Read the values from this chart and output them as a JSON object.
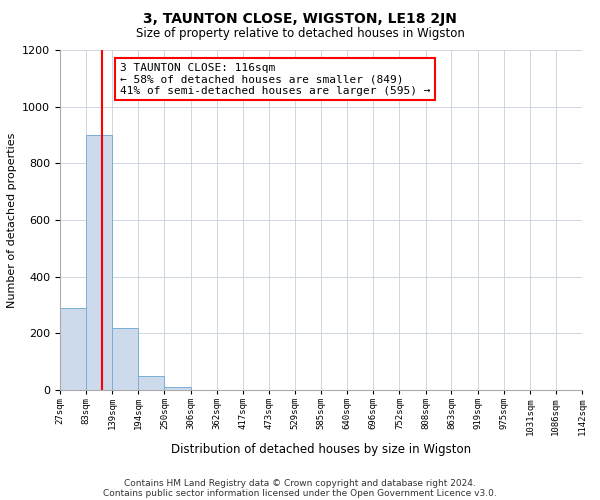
{
  "title": "3, TAUNTON CLOSE, WIGSTON, LE18 2JN",
  "subtitle": "Size of property relative to detached houses in Wigston",
  "xlabel": "Distribution of detached houses by size in Wigston",
  "ylabel": "Number of detached properties",
  "bin_edges": [
    27,
    83,
    139,
    194,
    250,
    306,
    362,
    417,
    473,
    529,
    585,
    640,
    696,
    752,
    808,
    863,
    919,
    975,
    1031,
    1086,
    1142
  ],
  "bin_labels": [
    "27sqm",
    "83sqm",
    "139sqm",
    "194sqm",
    "250sqm",
    "306sqm",
    "362sqm",
    "417sqm",
    "473sqm",
    "529sqm",
    "585sqm",
    "640sqm",
    "696sqm",
    "752sqm",
    "808sqm",
    "863sqm",
    "919sqm",
    "975sqm",
    "1031sqm",
    "1086sqm",
    "1142sqm"
  ],
  "counts": [
    290,
    900,
    220,
    50,
    10,
    0,
    0,
    0,
    0,
    0,
    0,
    0,
    0,
    0,
    0,
    0,
    0,
    0,
    0,
    0
  ],
  "bar_color": "#ccdaec",
  "bar_edge_color": "#7bafd4",
  "vline_x": 116,
  "vline_color": "red",
  "ylim": [
    0,
    1200
  ],
  "yticks": [
    0,
    200,
    400,
    600,
    800,
    1000,
    1200
  ],
  "annotation_text": "3 TAUNTON CLOSE: 116sqm\n← 58% of detached houses are smaller (849)\n41% of semi-detached houses are larger (595) →",
  "annotation_box_color": "white",
  "annotation_box_edge_color": "red",
  "footer_line1": "Contains HM Land Registry data © Crown copyright and database right 2024.",
  "footer_line2": "Contains public sector information licensed under the Open Government Licence v3.0.",
  "background_color": "white",
  "grid_color": "#c8d0de"
}
